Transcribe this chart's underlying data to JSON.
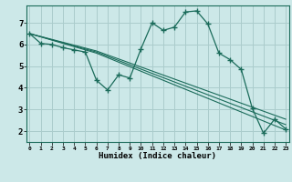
{
  "title": "",
  "xlabel": "Humidex (Indice chaleur)",
  "ylabel": "",
  "bg_color": "#cce8e8",
  "grid_color": "#aacccc",
  "line_color": "#1a6b5a",
  "marker_color": "#1a6b5a",
  "x_ticks": [
    0,
    1,
    2,
    3,
    4,
    5,
    6,
    7,
    8,
    9,
    10,
    11,
    12,
    13,
    14,
    15,
    16,
    17,
    18,
    19,
    20,
    21,
    22,
    23
  ],
  "y_ticks": [
    2,
    3,
    4,
    5,
    6,
    7
  ],
  "xlim": [
    -0.3,
    23.3
  ],
  "ylim": [
    1.5,
    7.8
  ],
  "series": [
    {
      "x": [
        0,
        1,
        2,
        3,
        4,
        5,
        6,
        7,
        8,
        9,
        10,
        11,
        12,
        13,
        14,
        15,
        16,
        17,
        18,
        19,
        20,
        21,
        22,
        23
      ],
      "y": [
        6.5,
        6.05,
        6.0,
        5.85,
        5.75,
        5.65,
        4.35,
        3.9,
        4.6,
        4.45,
        5.8,
        7.0,
        6.65,
        6.8,
        7.5,
        7.55,
        6.95,
        5.6,
        5.3,
        4.85,
        3.05,
        1.9,
        2.55,
        2.1
      ],
      "has_markers": true
    },
    {
      "x": [
        0,
        6,
        23
      ],
      "y": [
        6.5,
        5.6,
        2.05
      ],
      "has_markers": false
    },
    {
      "x": [
        0,
        6,
        23
      ],
      "y": [
        6.5,
        5.65,
        2.3
      ],
      "has_markers": false
    },
    {
      "x": [
        0,
        6,
        23
      ],
      "y": [
        6.5,
        5.7,
        2.55
      ],
      "has_markers": false
    }
  ]
}
